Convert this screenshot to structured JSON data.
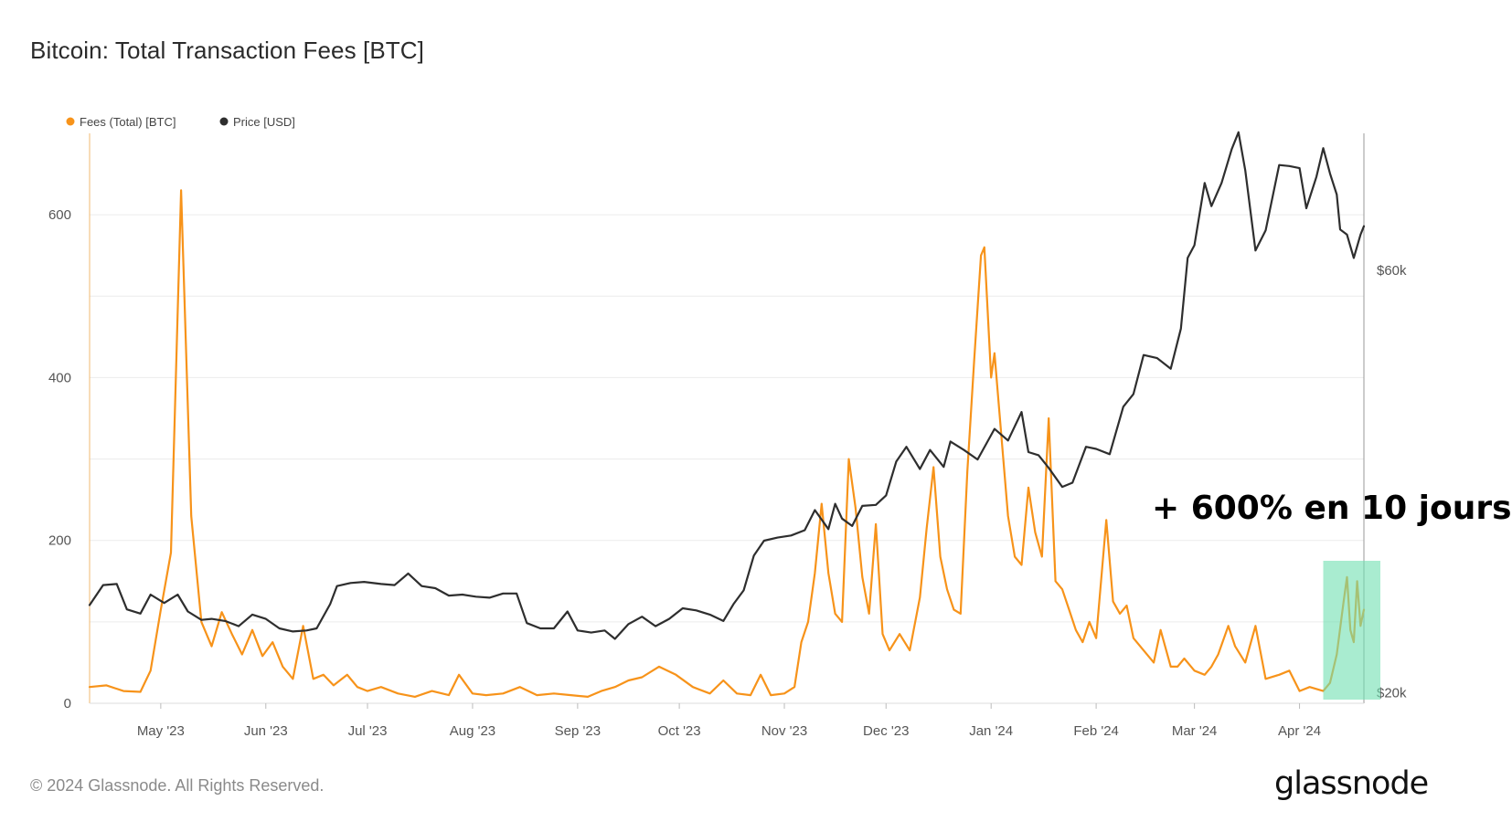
{
  "title": "Bitcoin: Total Transaction Fees [BTC]",
  "footer": "© 2024 Glassnode. All Rights Reserved.",
  "logo": "glassnode",
  "annotation": "+ 600% en 10 jours",
  "colors": {
    "fees": "#f7931a",
    "price": "#2e2e2e",
    "highlight": "#6fe0b0"
  },
  "chart_data": {
    "type": "line",
    "title": "Bitcoin: Total Transaction Fees [BTC]",
    "legend": {
      "placement": "top-left",
      "entries": [
        "Fees (Total) [BTC]",
        "Price [USD]"
      ]
    },
    "grid": true,
    "x_ticks": [
      "May '23",
      "Jun '23",
      "Jul '23",
      "Aug '23",
      "Sep '23",
      "Oct '23",
      "Nov '23",
      "Dec '23",
      "Jan '24",
      "Feb '24",
      "Mar '24",
      "Apr '24"
    ],
    "y_left": {
      "label": "",
      "ticks": [
        0,
        200,
        400,
        600
      ],
      "range": [
        0,
        700
      ]
    },
    "y_right": {
      "label": "",
      "ticks": [
        "$20k",
        "$60k"
      ],
      "range": [
        19000,
        73000
      ]
    },
    "highlight_region": {
      "x_start": "2024-04-08",
      "x_end": "2024-04-20",
      "label": "+ 600% en 10 jours"
    },
    "series": [
      {
        "name": "Fees (Total) [BTC]",
        "axis": "left",
        "points": [
          [
            "2023-04-10",
            20
          ],
          [
            "2023-04-15",
            22
          ],
          [
            "2023-04-20",
            15
          ],
          [
            "2023-04-25",
            14
          ],
          [
            "2023-04-28",
            40
          ],
          [
            "2023-05-01",
            115
          ],
          [
            "2023-05-04",
            185
          ],
          [
            "2023-05-07",
            630
          ],
          [
            "2023-05-10",
            230
          ],
          [
            "2023-05-13",
            100
          ],
          [
            "2023-05-16",
            70
          ],
          [
            "2023-05-19",
            112
          ],
          [
            "2023-05-22",
            85
          ],
          [
            "2023-05-25",
            60
          ],
          [
            "2023-05-28",
            90
          ],
          [
            "2023-05-31",
            58
          ],
          [
            "2023-06-03",
            75
          ],
          [
            "2023-06-06",
            45
          ],
          [
            "2023-06-09",
            30
          ],
          [
            "2023-06-12",
            95
          ],
          [
            "2023-06-15",
            30
          ],
          [
            "2023-06-18",
            35
          ],
          [
            "2023-06-21",
            22
          ],
          [
            "2023-06-25",
            35
          ],
          [
            "2023-06-28",
            20
          ],
          [
            "2023-07-01",
            15
          ],
          [
            "2023-07-05",
            20
          ],
          [
            "2023-07-10",
            12
          ],
          [
            "2023-07-15",
            8
          ],
          [
            "2023-07-20",
            15
          ],
          [
            "2023-07-25",
            10
          ],
          [
            "2023-07-28",
            35
          ],
          [
            "2023-08-01",
            12
          ],
          [
            "2023-08-05",
            10
          ],
          [
            "2023-08-10",
            12
          ],
          [
            "2023-08-15",
            20
          ],
          [
            "2023-08-20",
            10
          ],
          [
            "2023-08-25",
            12
          ],
          [
            "2023-08-30",
            10
          ],
          [
            "2023-09-04",
            8
          ],
          [
            "2023-09-08",
            15
          ],
          [
            "2023-09-12",
            20
          ],
          [
            "2023-09-16",
            28
          ],
          [
            "2023-09-20",
            32
          ],
          [
            "2023-09-25",
            45
          ],
          [
            "2023-09-30",
            35
          ],
          [
            "2023-10-05",
            20
          ],
          [
            "2023-10-10",
            12
          ],
          [
            "2023-10-14",
            28
          ],
          [
            "2023-10-18",
            12
          ],
          [
            "2023-10-22",
            10
          ],
          [
            "2023-10-25",
            35
          ],
          [
            "2023-10-28",
            10
          ],
          [
            "2023-11-01",
            12
          ],
          [
            "2023-11-04",
            20
          ],
          [
            "2023-11-06",
            75
          ],
          [
            "2023-11-08",
            100
          ],
          [
            "2023-11-10",
            160
          ],
          [
            "2023-11-12",
            245
          ],
          [
            "2023-11-14",
            160
          ],
          [
            "2023-11-16",
            110
          ],
          [
            "2023-11-18",
            100
          ],
          [
            "2023-11-20",
            300
          ],
          [
            "2023-11-22",
            240
          ],
          [
            "2023-11-24",
            155
          ],
          [
            "2023-11-26",
            110
          ],
          [
            "2023-11-28",
            220
          ],
          [
            "2023-11-30",
            85
          ],
          [
            "2023-12-02",
            65
          ],
          [
            "2023-12-05",
            85
          ],
          [
            "2023-12-08",
            65
          ],
          [
            "2023-12-11",
            130
          ],
          [
            "2023-12-13",
            215
          ],
          [
            "2023-12-15",
            290
          ],
          [
            "2023-12-17",
            180
          ],
          [
            "2023-12-19",
            140
          ],
          [
            "2023-12-21",
            115
          ],
          [
            "2023-12-23",
            110
          ],
          [
            "2023-12-25",
            285
          ],
          [
            "2023-12-27",
            420
          ],
          [
            "2023-12-29",
            550
          ],
          [
            "2023-12-30",
            560
          ],
          [
            "2024-01-01",
            400
          ],
          [
            "2024-01-02",
            430
          ],
          [
            "2024-01-04",
            330
          ],
          [
            "2024-01-06",
            230
          ],
          [
            "2024-01-08",
            180
          ],
          [
            "2024-01-10",
            170
          ],
          [
            "2024-01-12",
            265
          ],
          [
            "2024-01-14",
            210
          ],
          [
            "2024-01-16",
            180
          ],
          [
            "2024-01-18",
            350
          ],
          [
            "2024-01-20",
            150
          ],
          [
            "2024-01-22",
            140
          ],
          [
            "2024-01-24",
            115
          ],
          [
            "2024-01-26",
            90
          ],
          [
            "2024-01-28",
            75
          ],
          [
            "2024-01-30",
            100
          ],
          [
            "2024-02-01",
            80
          ],
          [
            "2024-02-04",
            225
          ],
          [
            "2024-02-06",
            125
          ],
          [
            "2024-02-08",
            110
          ],
          [
            "2024-02-10",
            120
          ],
          [
            "2024-02-12",
            80
          ],
          [
            "2024-02-15",
            65
          ],
          [
            "2024-02-18",
            50
          ],
          [
            "2024-02-20",
            90
          ],
          [
            "2024-02-23",
            45
          ],
          [
            "2024-02-25",
            45
          ],
          [
            "2024-02-27",
            55
          ],
          [
            "2024-03-01",
            40
          ],
          [
            "2024-03-04",
            35
          ],
          [
            "2024-03-06",
            45
          ],
          [
            "2024-03-08",
            60
          ],
          [
            "2024-03-11",
            95
          ],
          [
            "2024-03-13",
            70
          ],
          [
            "2024-03-16",
            50
          ],
          [
            "2024-03-19",
            95
          ],
          [
            "2024-03-22",
            30
          ],
          [
            "2024-03-26",
            35
          ],
          [
            "2024-03-29",
            40
          ],
          [
            "2024-04-01",
            15
          ],
          [
            "2024-04-04",
            20
          ],
          [
            "2024-04-08",
            15
          ],
          [
            "2024-04-10",
            25
          ],
          [
            "2024-04-12",
            60
          ],
          [
            "2024-04-14",
            125
          ],
          [
            "2024-04-15",
            155
          ],
          [
            "2024-04-16",
            90
          ],
          [
            "2024-04-17",
            75
          ],
          [
            "2024-04-18",
            150
          ],
          [
            "2024-04-19",
            95
          ],
          [
            "2024-04-20",
            115
          ]
        ]
      },
      {
        "name": "Price [USD]",
        "axis": "right",
        "points": [
          [
            "2023-04-10",
            28300
          ],
          [
            "2023-04-14",
            30200
          ],
          [
            "2023-04-18",
            30300
          ],
          [
            "2023-04-21",
            27900
          ],
          [
            "2023-04-25",
            27500
          ],
          [
            "2023-04-28",
            29300
          ],
          [
            "2023-05-02",
            28500
          ],
          [
            "2023-05-06",
            29300
          ],
          [
            "2023-05-09",
            27700
          ],
          [
            "2023-05-13",
            26900
          ],
          [
            "2023-05-16",
            27000
          ],
          [
            "2023-05-20",
            26800
          ],
          [
            "2023-05-24",
            26300
          ],
          [
            "2023-05-28",
            27400
          ],
          [
            "2023-06-01",
            27000
          ],
          [
            "2023-06-05",
            26100
          ],
          [
            "2023-06-09",
            25800
          ],
          [
            "2023-06-13",
            25900
          ],
          [
            "2023-06-16",
            26100
          ],
          [
            "2023-06-20",
            28400
          ],
          [
            "2023-06-22",
            30100
          ],
          [
            "2023-06-26",
            30400
          ],
          [
            "2023-06-30",
            30500
          ],
          [
            "2023-07-05",
            30300
          ],
          [
            "2023-07-09",
            30200
          ],
          [
            "2023-07-13",
            31300
          ],
          [
            "2023-07-17",
            30100
          ],
          [
            "2023-07-21",
            29900
          ],
          [
            "2023-07-25",
            29200
          ],
          [
            "2023-07-29",
            29300
          ],
          [
            "2023-08-02",
            29100
          ],
          [
            "2023-08-06",
            29000
          ],
          [
            "2023-08-10",
            29400
          ],
          [
            "2023-08-14",
            29400
          ],
          [
            "2023-08-17",
            26600
          ],
          [
            "2023-08-21",
            26100
          ],
          [
            "2023-08-25",
            26100
          ],
          [
            "2023-08-29",
            27700
          ],
          [
            "2023-09-01",
            25900
          ],
          [
            "2023-09-05",
            25700
          ],
          [
            "2023-09-09",
            25900
          ],
          [
            "2023-09-12",
            25100
          ],
          [
            "2023-09-16",
            26500
          ],
          [
            "2023-09-20",
            27200
          ],
          [
            "2023-09-24",
            26300
          ],
          [
            "2023-09-28",
            27000
          ],
          [
            "2023-10-02",
            28000
          ],
          [
            "2023-10-06",
            27800
          ],
          [
            "2023-10-10",
            27400
          ],
          [
            "2023-10-14",
            26800
          ],
          [
            "2023-10-17",
            28400
          ],
          [
            "2023-10-20",
            29700
          ],
          [
            "2023-10-23",
            33000
          ],
          [
            "2023-10-26",
            34400
          ],
          [
            "2023-10-30",
            34700
          ],
          [
            "2023-11-03",
            34900
          ],
          [
            "2023-11-07",
            35400
          ],
          [
            "2023-11-10",
            37300
          ],
          [
            "2023-11-14",
            35500
          ],
          [
            "2023-11-16",
            37900
          ],
          [
            "2023-11-18",
            36500
          ],
          [
            "2023-11-21",
            35800
          ],
          [
            "2023-11-24",
            37700
          ],
          [
            "2023-11-28",
            37800
          ],
          [
            "2023-12-01",
            38700
          ],
          [
            "2023-12-04",
            41900
          ],
          [
            "2023-12-07",
            43300
          ],
          [
            "2023-12-11",
            41200
          ],
          [
            "2023-12-14",
            43000
          ],
          [
            "2023-12-18",
            41400
          ],
          [
            "2023-12-20",
            43800
          ],
          [
            "2023-12-24",
            43000
          ],
          [
            "2023-12-28",
            42100
          ],
          [
            "2024-01-02",
            45000
          ],
          [
            "2024-01-06",
            43900
          ],
          [
            "2024-01-10",
            46600
          ],
          [
            "2024-01-12",
            42800
          ],
          [
            "2024-01-15",
            42500
          ],
          [
            "2024-01-18",
            41300
          ],
          [
            "2024-01-22",
            39500
          ],
          [
            "2024-01-25",
            39900
          ],
          [
            "2024-01-29",
            43300
          ],
          [
            "2024-02-01",
            43100
          ],
          [
            "2024-02-05",
            42600
          ],
          [
            "2024-02-09",
            47100
          ],
          [
            "2024-02-12",
            48300
          ],
          [
            "2024-02-15",
            52000
          ],
          [
            "2024-02-19",
            51700
          ],
          [
            "2024-02-23",
            50700
          ],
          [
            "2024-02-26",
            54500
          ],
          [
            "2024-02-28",
            61200
          ],
          [
            "2024-03-01",
            62400
          ],
          [
            "2024-03-04",
            68300
          ],
          [
            "2024-03-06",
            66100
          ],
          [
            "2024-03-09",
            68300
          ],
          [
            "2024-03-12",
            71500
          ],
          [
            "2024-03-14",
            73100
          ],
          [
            "2024-03-16",
            69500
          ],
          [
            "2024-03-19",
            61900
          ],
          [
            "2024-03-22",
            63800
          ],
          [
            "2024-03-26",
            70000
          ],
          [
            "2024-03-29",
            69900
          ],
          [
            "2024-04-01",
            69700
          ],
          [
            "2024-04-03",
            65900
          ],
          [
            "2024-04-06",
            68900
          ],
          [
            "2024-04-08",
            71600
          ],
          [
            "2024-04-10",
            69200
          ],
          [
            "2024-04-12",
            67200
          ],
          [
            "2024-04-13",
            63900
          ],
          [
            "2024-04-15",
            63400
          ],
          [
            "2024-04-17",
            61200
          ],
          [
            "2024-04-19",
            63400
          ],
          [
            "2024-04-20",
            64200
          ]
        ]
      }
    ]
  }
}
